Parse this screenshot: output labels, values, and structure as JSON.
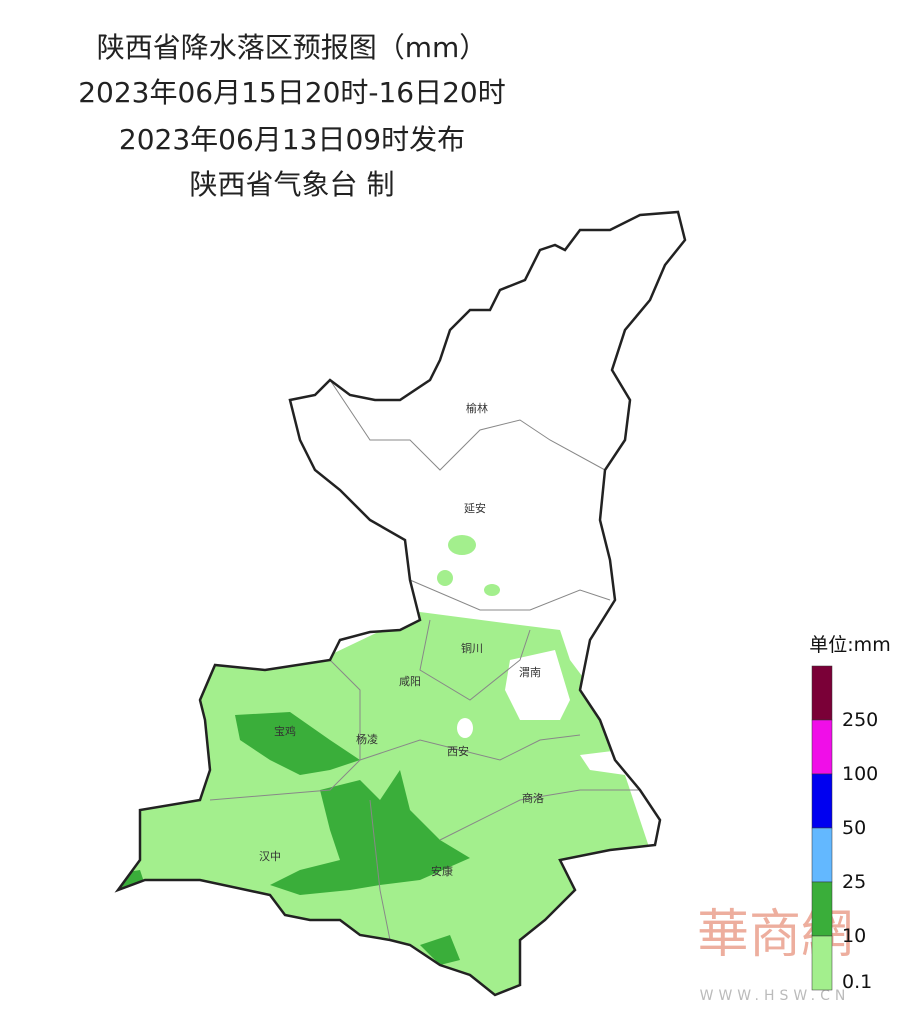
{
  "header": {
    "title": "陕西省降水落区预报图（mm）",
    "period": "2023年06月15日20时-16日20时",
    "issued": "2023年06月13日09时发布",
    "producer": "陕西省气象台 制"
  },
  "cities": [
    "榆林",
    "延安",
    "铜川",
    "渭南",
    "咸阳",
    "宝鸡",
    "杨凌",
    "西安",
    "商洛",
    "汉中",
    "安康"
  ],
  "legend": {
    "unit": "单位:mm",
    "labels": [
      250,
      100,
      50,
      25,
      10,
      0.1
    ]
  },
  "watermark": {
    "name": "華商網",
    "url": "WWW.HSW.CN"
  }
}
